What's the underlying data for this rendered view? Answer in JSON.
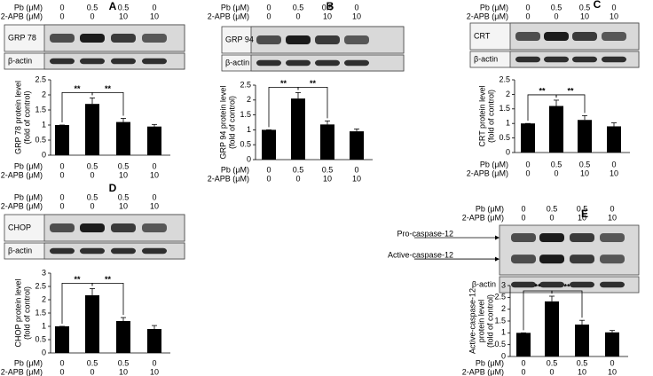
{
  "chart_data": [
    {
      "type": "bar",
      "title": "A",
      "treatments": [
        {
          "name": "Pb (μM)",
          "levels": [
            "0",
            "0.5",
            "0.5",
            "0"
          ]
        },
        {
          "name": "2-APB (μM)",
          "levels": [
            "0",
            "0",
            "10",
            "10"
          ]
        }
      ],
      "blot_labels": [
        "GRP 78",
        "β-actin"
      ],
      "ylabel": [
        "GRP 78 protein level",
        "(fold of control)"
      ],
      "values": [
        1,
        1.7,
        1.1,
        0.95
      ],
      "errors": [
        0,
        0.2,
        0.12,
        0.07
      ],
      "ylim": [
        0,
        2.5
      ],
      "yticks": [
        0,
        0.5,
        1,
        1.5,
        2,
        2.5
      ],
      "significance": [
        {
          "pair": [
            0,
            1
          ],
          "label": "**"
        },
        {
          "pair": [
            1,
            2
          ],
          "label": "**"
        }
      ],
      "color": "#000000"
    },
    {
      "type": "bar",
      "title": "B",
      "treatments": [
        {
          "name": "Pb (μM)",
          "levels": [
            "0",
            "0.5",
            "0.5",
            "0"
          ]
        },
        {
          "name": "2-APB (μM)",
          "levels": [
            "0",
            "0",
            "10",
            "10"
          ]
        }
      ],
      "blot_labels": [
        "GRP 94",
        "β-actin"
      ],
      "ylabel": [
        "GRP 94 protein level",
        "(fold of control)"
      ],
      "values": [
        1,
        2.05,
        1.18,
        0.95
      ],
      "errors": [
        0,
        0.2,
        0.12,
        0.08
      ],
      "ylim": [
        0,
        2.5
      ],
      "yticks": [
        0,
        0.5,
        1,
        1.5,
        2,
        2.5
      ],
      "significance": [
        {
          "pair": [
            0,
            1
          ],
          "label": "**"
        },
        {
          "pair": [
            1,
            2
          ],
          "label": "**"
        }
      ],
      "color": "#000000"
    },
    {
      "type": "bar",
      "title": "C",
      "treatments": [
        {
          "name": "Pb (μM)",
          "levels": [
            "0",
            "0.5",
            "0.5",
            "0"
          ]
        },
        {
          "name": "2-APB (μM)",
          "levels": [
            "0",
            "0",
            "10",
            "10"
          ]
        }
      ],
      "blot_labels": [
        "CRT",
        "β-actin"
      ],
      "ylabel": [
        "CRT protein level",
        "(fold of control)"
      ],
      "values": [
        1,
        1.6,
        1.12,
        0.9
      ],
      "errors": [
        0,
        0.2,
        0.15,
        0.12
      ],
      "ylim": [
        0,
        2.5
      ],
      "yticks": [
        0,
        0.5,
        1,
        1.5,
        2,
        2.5
      ],
      "significance": [
        {
          "pair": [
            0,
            1
          ],
          "label": "**"
        },
        {
          "pair": [
            1,
            2
          ],
          "label": "**"
        }
      ],
      "color": "#000000"
    },
    {
      "type": "bar",
      "title": "D",
      "treatments": [
        {
          "name": "Pb (μM)",
          "levels": [
            "0",
            "0.5",
            "0.5",
            "0"
          ]
        },
        {
          "name": "2-APB (μM)",
          "levels": [
            "0",
            "0",
            "10",
            "10"
          ]
        }
      ],
      "blot_labels": [
        "CHOP",
        "β-actin"
      ],
      "ylabel": [
        "CHOP protein level",
        "(fold of control)"
      ],
      "values": [
        1,
        2.17,
        1.2,
        0.9
      ],
      "errors": [
        0,
        0.25,
        0.13,
        0.13
      ],
      "ylim": [
        0,
        3
      ],
      "yticks": [
        0,
        0.5,
        1,
        1.5,
        2,
        2.5,
        3
      ],
      "significance": [
        {
          "pair": [
            0,
            1
          ],
          "label": "**"
        },
        {
          "pair": [
            1,
            2
          ],
          "label": "**"
        }
      ],
      "color": "#000000"
    },
    {
      "type": "bar",
      "title": "E",
      "treatments": [
        {
          "name": "Pb (μM)",
          "levels": [
            "0",
            "0.5",
            "0.5",
            "0"
          ]
        },
        {
          "name": "2-APB (μM)",
          "levels": [
            "0",
            "0",
            "10",
            "10"
          ]
        }
      ],
      "blot_labels": [
        "Pro-caspase-12",
        "Active-caspase-12",
        "β-actin"
      ],
      "ylabel": [
        "Active-caspase-12",
        "protein level",
        "(fold of control)"
      ],
      "values": [
        1,
        2.33,
        1.35,
        1.02
      ],
      "errors": [
        0,
        0.22,
        0.18,
        0.08
      ],
      "ylim": [
        0,
        3
      ],
      "yticks": [
        0,
        0.5,
        1,
        1.5,
        2,
        2.5,
        3
      ],
      "significance": [
        {
          "pair": [
            0,
            1
          ],
          "label": "**"
        },
        {
          "pair": [
            1,
            2
          ],
          "label": "**"
        }
      ],
      "color": "#000000"
    }
  ]
}
